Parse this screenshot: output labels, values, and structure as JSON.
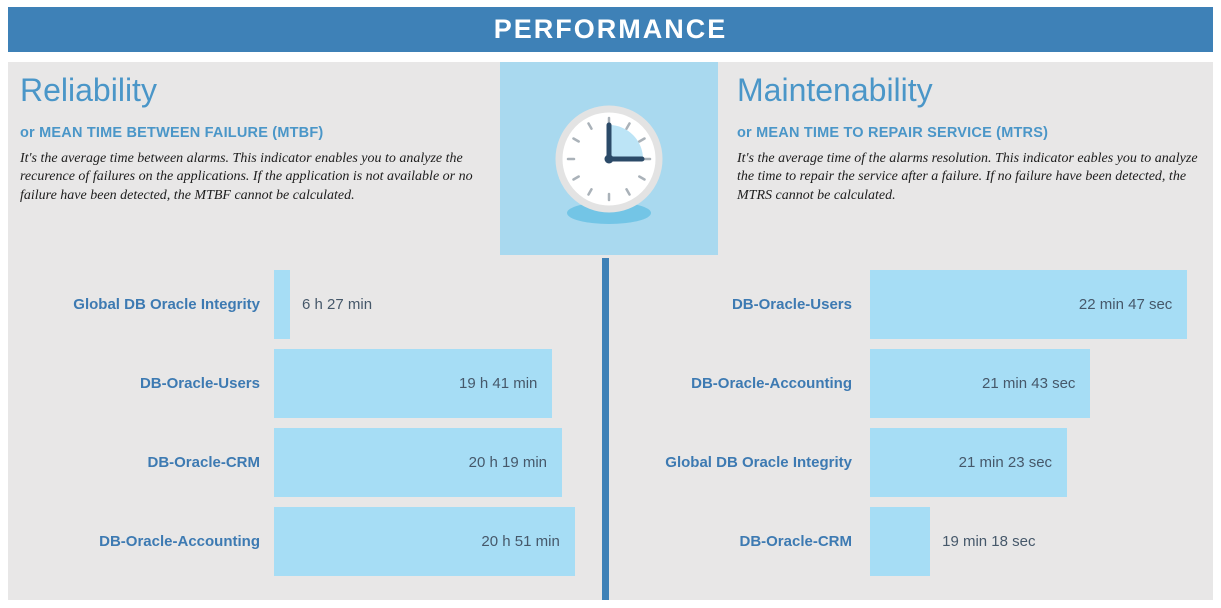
{
  "banner": {
    "title": "PERFORMANCE"
  },
  "left_section": {
    "title": "Reliability",
    "subtitle": "or MEAN TIME BETWEEN FAILURE (MTBF)",
    "description": "It's the average time between alarms. This indicator enables you to analyze the recurence of failures on the applications. If the application is not available or no failure have been detected, the MTBF cannot be calculated."
  },
  "right_section": {
    "title": "Maintenability",
    "subtitle": "or MEAN TIME TO REPAIR SERVICE (MTRS)",
    "description": "It's the average time of the alarms resolution. This indicator eables you to analyze the time to repair the service after a failure. If no failure have been detected, the MTRS cannot be calculated."
  },
  "clock_tile": {
    "icon": "analog-clock",
    "time_shown": "12:15"
  },
  "colors": {
    "banner_blue": "#3e81b7",
    "panel_gray": "#e8e7e7",
    "tile_blue": "#a9d9ef",
    "bar_blue": "#a6ddf5",
    "heading_blue": "#4a96c8",
    "label_blue": "#3d7ab2",
    "value_text": "#46586a",
    "divider_blue": "#3e81b7",
    "clock_shadow": "#73c5e6",
    "clock_hand": "#2b4a68"
  },
  "chart_data": [
    {
      "type": "bar",
      "orientation": "horizontal",
      "title": "Reliability (MTBF)",
      "unit": "minutes",
      "categories": [
        "Global DB Oracle Integrity",
        "DB-Oracle-Users",
        "DB-Oracle-CRM",
        "DB-Oracle-Accounting"
      ],
      "values": [
        387,
        1181,
        1219,
        1251
      ],
      "value_labels": [
        "6 h 27 min",
        "19 h 41 min",
        "20 h 19 min",
        "20 h 51 min"
      ],
      "bar_pct": [
        5,
        87,
        90,
        94
      ],
      "bar_color": "#a6ddf5",
      "grid": false,
      "legend": false
    },
    {
      "type": "bar",
      "orientation": "horizontal",
      "title": "Maintenability (MTRS)",
      "unit": "seconds",
      "categories": [
        "DB-Oracle-Users",
        "DB-Oracle-Accounting",
        "Global DB Oracle Integrity",
        "DB-Oracle-CRM"
      ],
      "values": [
        1367,
        1303,
        1283,
        1158
      ],
      "value_labels": [
        "22 min 47 sec",
        "21 min 43 sec",
        "21 min 23 sec",
        "19 min 18 sec"
      ],
      "bar_pct": [
        95,
        66,
        59,
        18
      ],
      "bar_color": "#a6ddf5",
      "grid": false,
      "legend": false
    }
  ]
}
